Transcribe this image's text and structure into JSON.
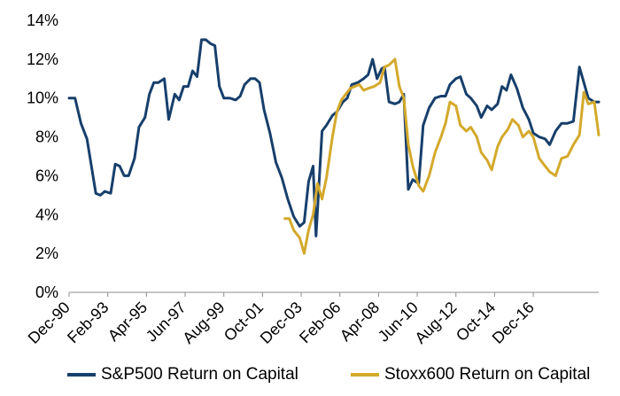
{
  "chart_data": {
    "type": "line",
    "ylim": [
      0,
      14
    ],
    "yticks": [
      "0%",
      "2%",
      "4%",
      "6%",
      "8%",
      "10%",
      "12%",
      "14%"
    ],
    "xticks": [
      "Dec-90",
      "Feb-93",
      "Apr-95",
      "Jun-97",
      "Aug-99",
      "Oct-01",
      "Dec-03",
      "Feb-06",
      "Apr-08",
      "Jun-10",
      "Aug-12",
      "Oct-14",
      "Dec-16"
    ],
    "grid": false,
    "legend_position": "bottom",
    "series": [
      {
        "name": "S&P500 Return on Capital",
        "color": "#173f6b",
        "points": [
          [
            "1990-12",
            10.0
          ],
          [
            "1991-04",
            10.0
          ],
          [
            "1991-08",
            8.7
          ],
          [
            "1991-12",
            7.9
          ],
          [
            "1992-03",
            6.5
          ],
          [
            "1992-06",
            5.1
          ],
          [
            "1992-09",
            5.0
          ],
          [
            "1992-12",
            5.2
          ],
          [
            "1993-04",
            5.1
          ],
          [
            "1993-07",
            6.6
          ],
          [
            "1993-10",
            6.5
          ],
          [
            "1994-01",
            6.0
          ],
          [
            "1994-04",
            6.0
          ],
          [
            "1994-08",
            6.9
          ],
          [
            "1994-11",
            8.5
          ],
          [
            "1995-03",
            9.0
          ],
          [
            "1995-06",
            10.2
          ],
          [
            "1995-09",
            10.8
          ],
          [
            "1995-12",
            10.8
          ],
          [
            "1996-04",
            11.0
          ],
          [
            "1996-07",
            8.9
          ],
          [
            "1996-11",
            10.2
          ],
          [
            "1997-02",
            9.9
          ],
          [
            "1997-05",
            10.6
          ],
          [
            "1997-08",
            10.6
          ],
          [
            "1997-11",
            11.4
          ],
          [
            "1998-02",
            11.1
          ],
          [
            "1998-05",
            13.0
          ],
          [
            "1998-08",
            13.0
          ],
          [
            "1998-11",
            12.8
          ],
          [
            "1999-02",
            12.7
          ],
          [
            "1999-05",
            10.6
          ],
          [
            "1999-08",
            10.0
          ],
          [
            "1999-12",
            10.0
          ],
          [
            "2000-04",
            9.9
          ],
          [
            "2000-07",
            10.1
          ],
          [
            "2000-10",
            10.7
          ],
          [
            "2001-02",
            11.0
          ],
          [
            "2001-05",
            11.0
          ],
          [
            "2001-08",
            10.8
          ],
          [
            "2001-11",
            9.4
          ],
          [
            "2002-03",
            8.2
          ],
          [
            "2002-07",
            6.7
          ],
          [
            "2002-11",
            5.9
          ],
          [
            "2003-03",
            4.8
          ],
          [
            "2003-07",
            3.9
          ],
          [
            "2003-11",
            3.4
          ],
          [
            "2004-02",
            3.6
          ],
          [
            "2004-05",
            5.7
          ],
          [
            "2004-08",
            6.5
          ],
          [
            "2004-10",
            2.9
          ],
          [
            "2005-02",
            8.3
          ],
          [
            "2005-05",
            8.6
          ],
          [
            "2005-09",
            9.1
          ],
          [
            "2005-12",
            9.3
          ],
          [
            "2006-04",
            9.8
          ],
          [
            "2006-07",
            10.0
          ],
          [
            "2006-10",
            10.7
          ],
          [
            "2007-02",
            10.8
          ],
          [
            "2007-06",
            11.0
          ],
          [
            "2007-09",
            11.2
          ],
          [
            "2007-12",
            12.0
          ],
          [
            "2008-03",
            11.0
          ],
          [
            "2008-06",
            11.5
          ],
          [
            "2008-08",
            11.6
          ],
          [
            "2008-11",
            9.8
          ],
          [
            "2009-03",
            9.7
          ],
          [
            "2009-06",
            9.8
          ],
          [
            "2009-09",
            10.2
          ],
          [
            "2009-12",
            5.3
          ],
          [
            "2010-03",
            5.8
          ],
          [
            "2010-07",
            5.6
          ],
          [
            "2010-10",
            8.6
          ],
          [
            "2011-02",
            9.5
          ],
          [
            "2011-06",
            10.0
          ],
          [
            "2011-10",
            10.1
          ],
          [
            "2012-01",
            10.1
          ],
          [
            "2012-04",
            10.7
          ],
          [
            "2012-08",
            11.0
          ],
          [
            "2012-11",
            11.1
          ],
          [
            "2013-03",
            10.2
          ],
          [
            "2013-06",
            10.0
          ],
          [
            "2013-10",
            9.6
          ],
          [
            "2014-01",
            9.0
          ],
          [
            "2014-05",
            9.6
          ],
          [
            "2014-08",
            9.4
          ],
          [
            "2014-12",
            9.7
          ],
          [
            "2015-03",
            10.6
          ],
          [
            "2015-06",
            10.4
          ],
          [
            "2015-09",
            11.2
          ],
          [
            "2016-01",
            10.5
          ],
          [
            "2016-05",
            9.5
          ],
          [
            "2016-09",
            8.9
          ],
          [
            "2016-12",
            8.2
          ],
          [
            "2017-04",
            8.0
          ],
          [
            "2017-08",
            7.9
          ],
          [
            "2017-11",
            7.6
          ],
          [
            "2018-03",
            8.3
          ],
          [
            "2018-07",
            8.7
          ],
          [
            "2018-11",
            8.7
          ],
          [
            "2019-03",
            8.8
          ],
          [
            "2019-07",
            11.6
          ],
          [
            "2019-10",
            10.8
          ],
          [
            "2020-01",
            10.0
          ],
          [
            "2020-05",
            9.8
          ],
          [
            "2020-08",
            9.8
          ]
        ]
      },
      {
        "name": "Stoxx600 Return on Capital",
        "color": "#d4a92b",
        "points": [
          [
            "2003-01",
            3.8
          ],
          [
            "2003-04",
            3.8
          ],
          [
            "2003-07",
            3.2
          ],
          [
            "2003-11",
            2.8
          ],
          [
            "2004-02",
            2.0
          ],
          [
            "2004-05",
            3.2
          ],
          [
            "2004-08",
            4.0
          ],
          [
            "2004-11",
            5.6
          ],
          [
            "2005-02",
            4.8
          ],
          [
            "2005-05",
            5.9
          ],
          [
            "2005-09",
            8.0
          ],
          [
            "2005-12",
            9.3
          ],
          [
            "2006-03",
            9.9
          ],
          [
            "2006-06",
            10.2
          ],
          [
            "2006-09",
            10.5
          ],
          [
            "2006-12",
            10.6
          ],
          [
            "2007-03",
            10.7
          ],
          [
            "2007-06",
            10.4
          ],
          [
            "2007-09",
            10.5
          ],
          [
            "2008-01",
            10.6
          ],
          [
            "2008-05",
            10.8
          ],
          [
            "2008-08",
            11.6
          ],
          [
            "2008-11",
            11.7
          ],
          [
            "2009-03",
            12.0
          ],
          [
            "2009-06",
            10.6
          ],
          [
            "2009-09",
            10.0
          ],
          [
            "2009-12",
            7.6
          ],
          [
            "2010-03",
            6.5
          ],
          [
            "2010-07",
            5.5
          ],
          [
            "2010-10",
            5.2
          ],
          [
            "2011-02",
            6.0
          ],
          [
            "2011-06",
            7.2
          ],
          [
            "2011-10",
            8.0
          ],
          [
            "2012-01",
            8.7
          ],
          [
            "2012-04",
            9.8
          ],
          [
            "2012-08",
            9.6
          ],
          [
            "2012-11",
            8.6
          ],
          [
            "2013-03",
            8.3
          ],
          [
            "2013-06",
            8.5
          ],
          [
            "2013-10",
            8.0
          ],
          [
            "2014-01",
            7.2
          ],
          [
            "2014-05",
            6.8
          ],
          [
            "2014-08",
            6.3
          ],
          [
            "2014-12",
            7.5
          ],
          [
            "2015-03",
            8.0
          ],
          [
            "2015-07",
            8.4
          ],
          [
            "2015-10",
            8.9
          ],
          [
            "2016-02",
            8.6
          ],
          [
            "2016-05",
            8.0
          ],
          [
            "2016-09",
            8.3
          ],
          [
            "2016-12",
            8.0
          ],
          [
            "2017-04",
            6.9
          ],
          [
            "2017-07",
            6.6
          ],
          [
            "2017-11",
            6.2
          ],
          [
            "2018-03",
            6.0
          ],
          [
            "2018-07",
            6.9
          ],
          [
            "2018-11",
            7.0
          ],
          [
            "2019-03",
            7.6
          ],
          [
            "2019-07",
            8.1
          ],
          [
            "2019-10",
            10.3
          ],
          [
            "2020-01",
            9.7
          ],
          [
            "2020-05",
            9.8
          ],
          [
            "2020-08",
            8.1
          ]
        ]
      }
    ]
  }
}
